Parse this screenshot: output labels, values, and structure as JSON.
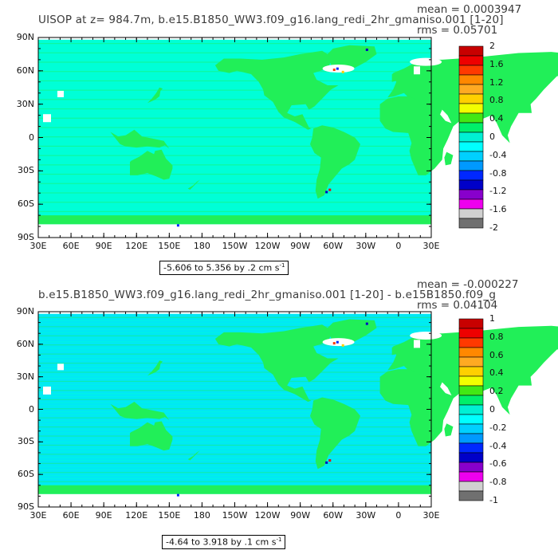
{
  "panels": [
    {
      "title": "UISOP at z= 984.7m, b.e15.B1850_WW3.f09_g16.lang_redi_2hr_gmaniso.001 [1-20]",
      "mean": "mean = 0.0003947",
      "rms": "rms = 0.05701",
      "range": "-5.606 to 5.356 by .2 cm s",
      "range_unit_sup": "-1",
      "colorbar_labels": [
        "2",
        "1.6",
        "1.2",
        "0.8",
        "0.4",
        "0",
        "-0.4",
        "-0.8",
        "-1.2",
        "-1.6",
        "-2"
      ]
    },
    {
      "title": "b.e15.B1850_WW3.f09_g16.lang_redi_2hr_gmaniso.001 [1-20] - b.e15B1850.f09_g",
      "mean": "mean = -0.000227",
      "rms": "rms = 0.04104",
      "range": "-4.64 to 3.918 by .1 cm s",
      "range_unit_sup": "-1",
      "colorbar_labels": [
        "1",
        "0.8",
        "0.6",
        "0.4",
        "0.2",
        "0",
        "-0.2",
        "-0.4",
        "-0.6",
        "-0.8",
        "-1"
      ]
    }
  ],
  "lat_labels": [
    "90N",
    "60N",
    "30N",
    "0",
    "30S",
    "60S",
    "90S"
  ],
  "lon_labels": [
    "30E",
    "60E",
    "90E",
    "120E",
    "150E",
    "180",
    "150W",
    "120W",
    "90W",
    "60W",
    "30W",
    "0",
    "30E"
  ],
  "colors": {
    "land": "#21ef58",
    "ocean": "#00ffd7",
    "cyan": "#00e8f5",
    "missing": "#ffffff",
    "palette": [
      "#c80000",
      "#ee0000",
      "#ff3a00",
      "#ff8800",
      "#ffaa22",
      "#ffd000",
      "#f2ff00",
      "#42e814",
      "#00ef6a",
      "#00f0d4",
      "#00ffff",
      "#00d0ff",
      "#0099ff",
      "#0028ff",
      "#0000c8",
      "#8800cc",
      "#ee00ee",
      "#d0d0d0",
      "#707070"
    ]
  }
}
